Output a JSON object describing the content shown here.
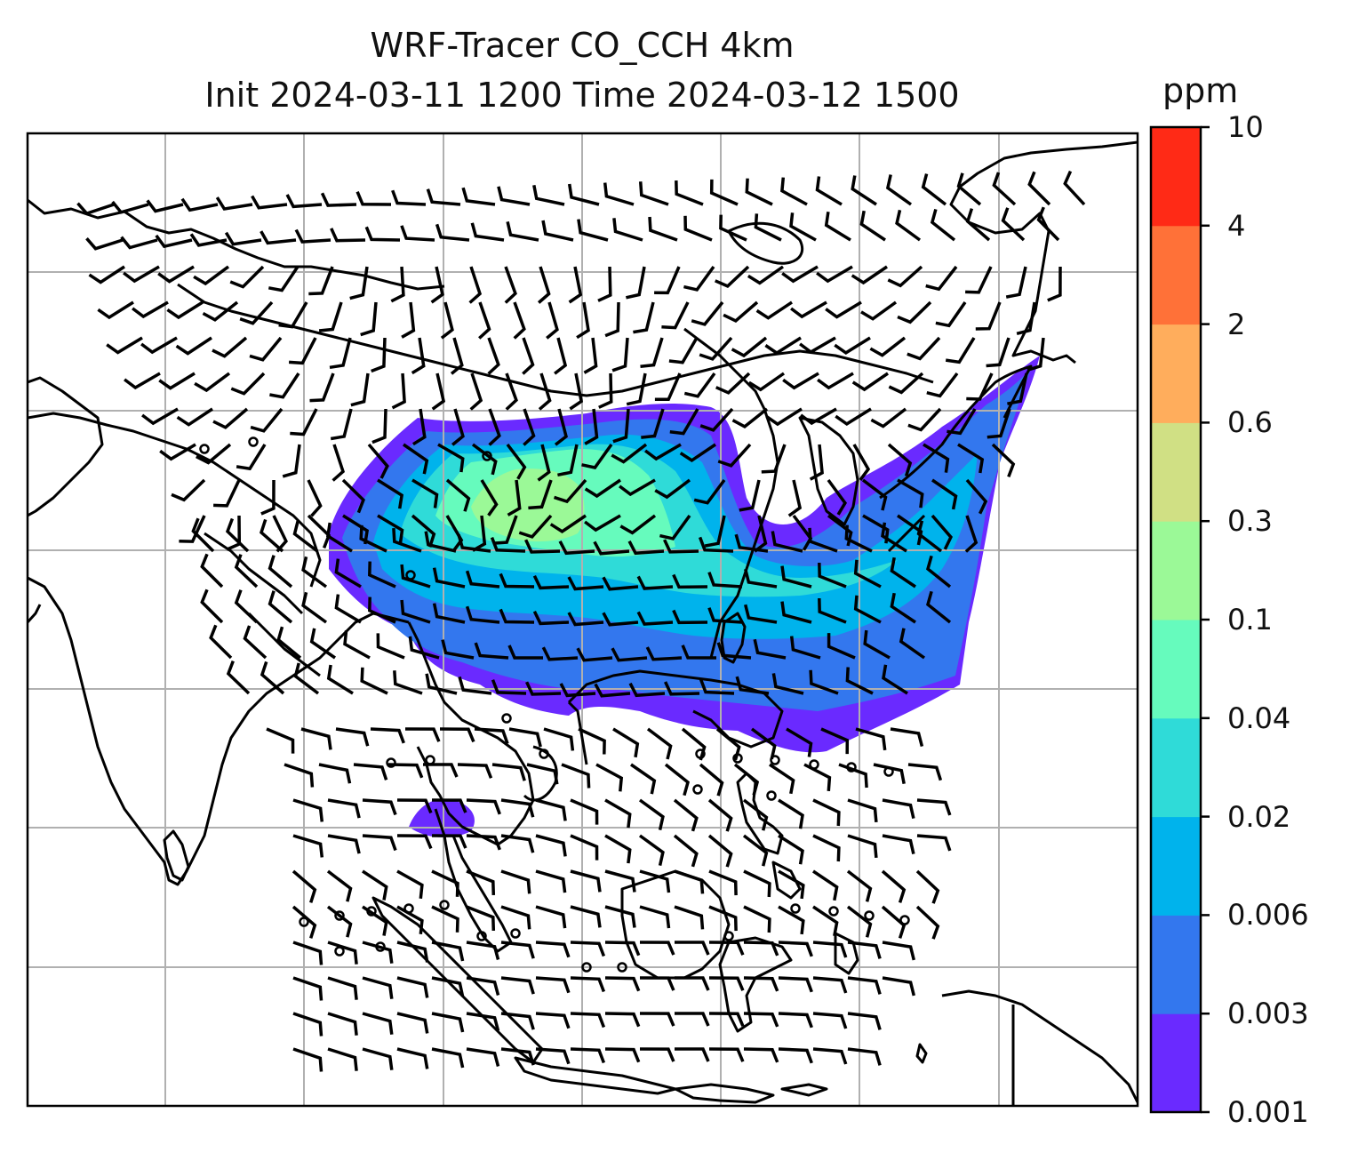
{
  "title": {
    "line1": "WRF-Tracer CO_CCH 4km",
    "line2": "Init 2024-03-11 1200 Time 2024-03-12 1500"
  },
  "colorbar": {
    "unit": "ppm",
    "ticks": [
      "0.001",
      "0.003",
      "0.006",
      "0.02",
      "0.04",
      "0.1",
      "0.3",
      "0.6",
      "2",
      "4",
      "10"
    ],
    "colors": [
      "#6a2aff",
      "#3377ee",
      "#00b3ec",
      "#2fdbd8",
      "#66fbbd",
      "#9bf997",
      "#d0e084",
      "#ffad5c",
      "#ff7138",
      "#ff2a16"
    ]
  },
  "map": {
    "gridlines": true,
    "gridline_color": "#b0b0b0",
    "wind_barbs": true,
    "coastline_color": "#000000"
  }
}
